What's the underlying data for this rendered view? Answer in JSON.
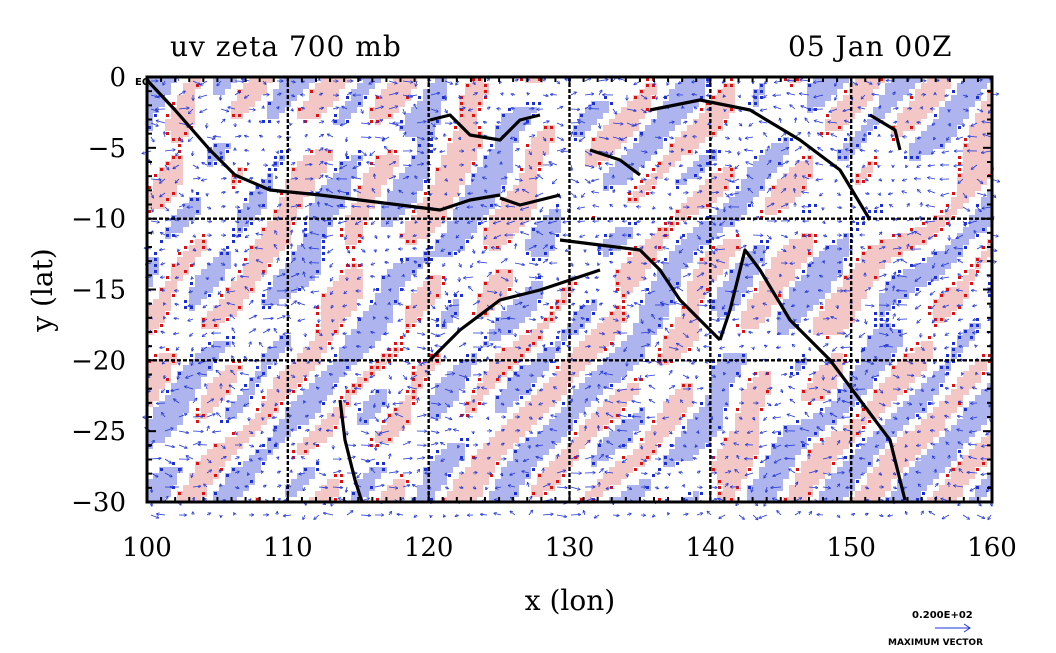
{
  "chart_data": {
    "type": "heatmap",
    "title": "uv zeta 700 mb",
    "subtitle": "05 Jan 00Z",
    "xlabel": "x (lon)",
    "ylabel": "y (lat)",
    "xlim": [
      100,
      160
    ],
    "ylim": [
      -30,
      0
    ],
    "xticks": [
      "100",
      "110",
      "120",
      "130",
      "140",
      "150",
      "160"
    ],
    "yticks": [
      "0",
      "−5",
      "−10",
      "−15",
      "−20",
      "−25",
      "−30"
    ],
    "grid": true,
    "grid_x": [
      110,
      120,
      130,
      140,
      150
    ],
    "grid_y": [
      -10,
      -20
    ],
    "corner_label": "EQ",
    "colors": {
      "positive_fill": "#f4c7c7",
      "positive_line": "#e01010",
      "negative_fill": "#aeb5ee",
      "negative_line": "#1a2fd6",
      "vector": "#1f35d8",
      "coast": "#000000"
    },
    "vector_legend": {
      "value": "0.200E+02",
      "label": "MAXIMUM VECTOR"
    }
  }
}
